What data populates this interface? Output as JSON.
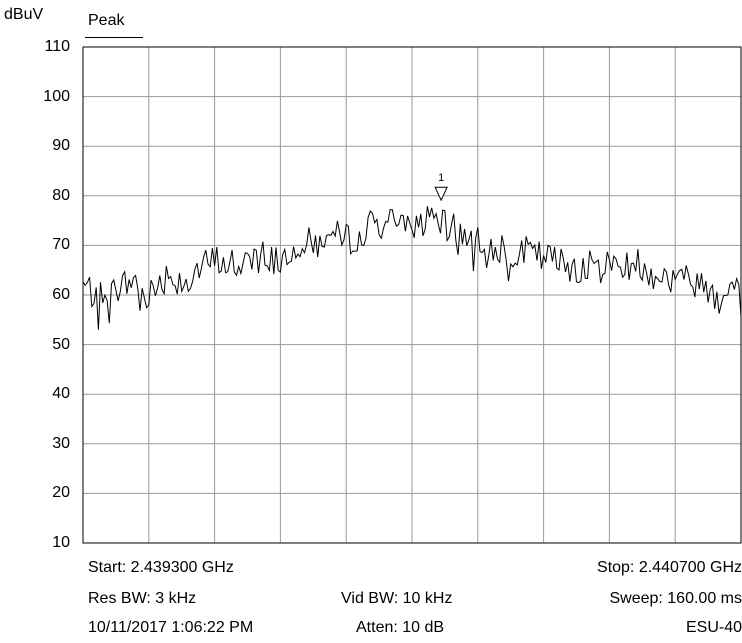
{
  "unit_label": "dBuV",
  "detector_label": "Peak",
  "footer": {
    "start": "Start: 2.439300 GHz",
    "stop": "Stop: 2.440700 GHz",
    "res_bw": "Res BW: 3 kHz",
    "vid_bw": "Vid BW: 10 kHz",
    "sweep": "Sweep: 160.00 ms",
    "timestamp": "10/11/2017 1:06:22 PM",
    "atten": "Atten: 10 dB",
    "instrument": "ESU-40"
  },
  "chart_data": {
    "type": "line",
    "ylabel": "dBuV",
    "ylim": [
      10,
      110
    ],
    "yticks": [
      "110",
      "100",
      "90",
      "80",
      "70",
      "60",
      "50",
      "40",
      "30",
      "20",
      "10"
    ],
    "xlim": [
      2.4393,
      2.4407
    ],
    "x_unit": "GHz",
    "grid": true,
    "series": [
      {
        "name": "Peak",
        "x": [
          2.4393,
          2.439335,
          2.43937,
          2.439405,
          2.43944,
          2.439475,
          2.43951,
          2.439545,
          2.43958,
          2.439615,
          2.43965,
          2.439685,
          2.43972,
          2.439755,
          2.43979,
          2.439825,
          2.43986,
          2.439895,
          2.43993,
          2.439965,
          2.44,
          2.440035,
          2.44007,
          2.440105,
          2.44014,
          2.440175,
          2.44021,
          2.440245,
          2.44028,
          2.440315,
          2.44035,
          2.440385,
          2.44042,
          2.440455,
          2.44049,
          2.440525,
          2.44056,
          2.440595,
          2.44063,
          2.440665,
          2.4407
        ],
        "values": [
          62,
          59.5,
          61,
          63,
          60,
          64,
          63,
          65,
          67,
          66,
          68,
          68.5,
          67,
          71,
          70,
          72,
          71,
          73,
          75,
          74,
          75,
          74.5,
          73.5,
          73,
          71,
          70,
          69,
          68.5,
          67.5,
          66.5,
          66,
          65.5,
          66,
          67,
          66,
          64,
          63,
          63,
          62,
          60.5,
          61
        ]
      }
    ],
    "marker": {
      "label": "1",
      "x": 2.440062,
      "y": 78.5
    }
  }
}
